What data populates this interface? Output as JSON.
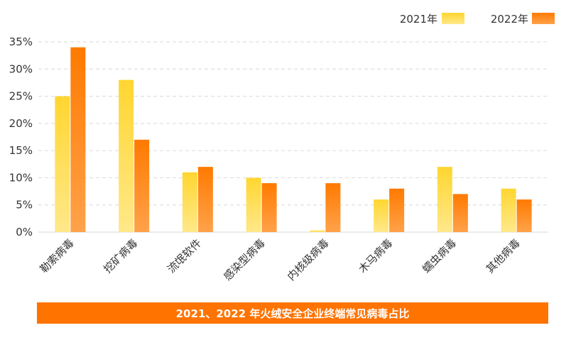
{
  "chart_data": {
    "type": "bar",
    "title": "2021、2022 年火绒安全企业终端常见病毒占比",
    "categories": [
      "勒索病毒",
      "挖矿病毒",
      "流氓软件",
      "感染型病毒",
      "内核级病毒",
      "木马病毒",
      "蠕虫病毒",
      "其他病毒"
    ],
    "series": [
      {
        "name": "2021年",
        "values": [
          25,
          28,
          11,
          10,
          0.3,
          6,
          12,
          8
        ]
      },
      {
        "name": "2022年",
        "values": [
          34,
          17,
          12,
          9,
          9,
          8,
          7,
          6
        ]
      }
    ],
    "xlabel": "",
    "ylabel": "",
    "ylim": [
      0,
      35
    ],
    "yticks": [
      "0%",
      "5%",
      "10%",
      "15%",
      "20%",
      "25%",
      "30%",
      "35%"
    ],
    "ytick_values": [
      0,
      5,
      10,
      15,
      20,
      25,
      30,
      35
    ],
    "grid": true,
    "legend_position": "top-right",
    "colors": {
      "series_2021_top": "#FFD630",
      "series_2021_bottom": "#FFE88A",
      "series_2022_top": "#FF7A00",
      "series_2022_bottom": "#FFA24A",
      "grid": "#D9D9D9",
      "caption_bg": "#FF7300"
    }
  }
}
